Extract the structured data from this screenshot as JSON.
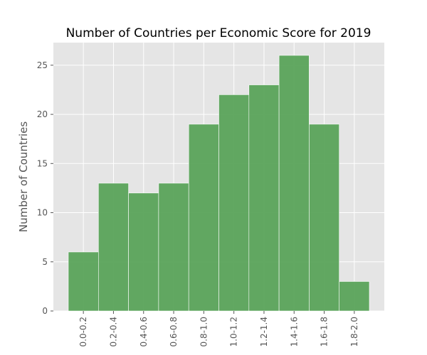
{
  "chart_data": {
    "type": "bar",
    "title": "Number of Countries per Economic Score for 2019",
    "y_label": "Number of Countries",
    "categories": [
      "0.0-0.2",
      "0.2-0.4",
      "0.4-0.6",
      "0.6-0.8",
      "0.8-1.0",
      "1.0-1.2",
      "1.2-1.4",
      "1.4-1.6",
      "1.6-1.8",
      "1.8-2.0"
    ],
    "values": [
      6,
      13,
      12,
      13,
      19,
      22,
      23,
      26,
      19,
      3
    ],
    "color": "#5aa35a",
    "ylim": [
      0,
      27.3
    ],
    "yticks": [
      0,
      5,
      10,
      15,
      20,
      25
    ],
    "grid": true
  }
}
